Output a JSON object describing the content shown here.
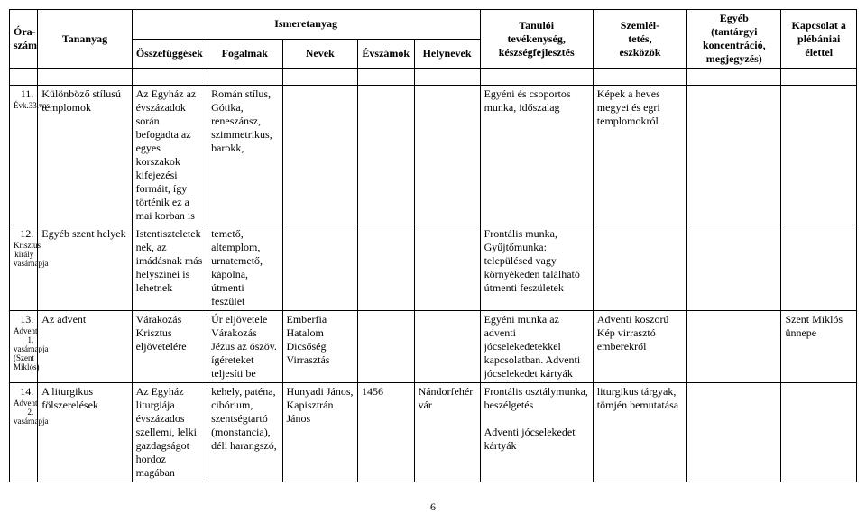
{
  "header": {
    "col1": "Óra-\nszám",
    "col2": "Tananyag",
    "group": "Ismeretanyag",
    "sub1": "Összefüggések",
    "sub2": "Fogalmak",
    "sub3": "Nevek",
    "sub4": "Évszámok",
    "sub5": "Helynevek",
    "col4": "Tanulói\ntevékenység,\nkészségfejlesztés",
    "col5": "Szemlél-\ntetés,\neszközök",
    "col6": "Egyéb\n(tantárgyi\nkoncentráció,\nmegjegyzés)",
    "col7": "Kapcsolat a\nplébániai élettel"
  },
  "rows": [
    {
      "num": "11.",
      "sub": "Évk.33.vas.",
      "topic": "Különböző stílusú templomok",
      "c1": "Az Egyház az évszázadok során befogadta az egyes korszakok kifejezési formáit, így történik ez a mai korban is",
      "c2": "Román stílus, Gótika, reneszánsz, szimmetrikus, barokk,",
      "c3": "",
      "c4": "",
      "c5": "",
      "activity": "Egyéni és csoportos munka, időszalag",
      "tools": "Képek a heves megyei és egri templomokról",
      "other": "",
      "life": ""
    },
    {
      "num": "12.",
      "sub": "Krisztus király vasárnapja",
      "topic": "Egyéb szent helyek",
      "c1": "Istentiszteletek nek, az imádásnak más helyszínei is lehetnek",
      "c2": "temető, altemplom, urnatemető, kápolna, útmenti feszület",
      "c3": "",
      "c4": "",
      "c5": "",
      "activity": "Frontális munka, Gyűjtőmunka: településed vagy környékeden található útmenti feszületek",
      "tools": "",
      "other": "",
      "life": ""
    },
    {
      "num": "13.",
      "sub": "Advent 1. vasárnapja (Szent Miklós)",
      "topic": "Az advent",
      "c1": "Várakozás Krisztus eljövetelére",
      "c2": "Úr eljövetele Várakozás Jézus az ószöv. ígéreteket teljesíti be",
      "c3": "Emberfia Hatalom Dicsőség Virrasztás",
      "c4": "",
      "c5": "",
      "activity": "Egyéni munka az adventi jócselekedetekkel kapcsolatban. Adventi jócselekedet kártyák",
      "tools": "Adventi koszorú Kép virrasztó emberekről",
      "other": "",
      "life": "Szent Miklós ünnepe"
    },
    {
      "num": "14.",
      "sub": "Advent 2. vasárnapja",
      "topic": "A liturgikus fölszerelések",
      "c1": "Az Egyház liturgiája évszázados szellemi, lelki gazdagságot hordoz magában",
      "c2": "kehely, paténa, cibórium, szentségtartó (monstancia), déli harangszó,",
      "c3": "Hunyadi János, Kapisztrán János",
      "c4": "1456",
      "c5": "Nándorfehér vár",
      "activity": "Frontális osztálymunka, beszélgetés\n\nAdventi jócselekedet kártyák",
      "tools": "liturgikus tárgyak, tömjén bemutatása",
      "other": "",
      "life": ""
    }
  ],
  "page": "6"
}
